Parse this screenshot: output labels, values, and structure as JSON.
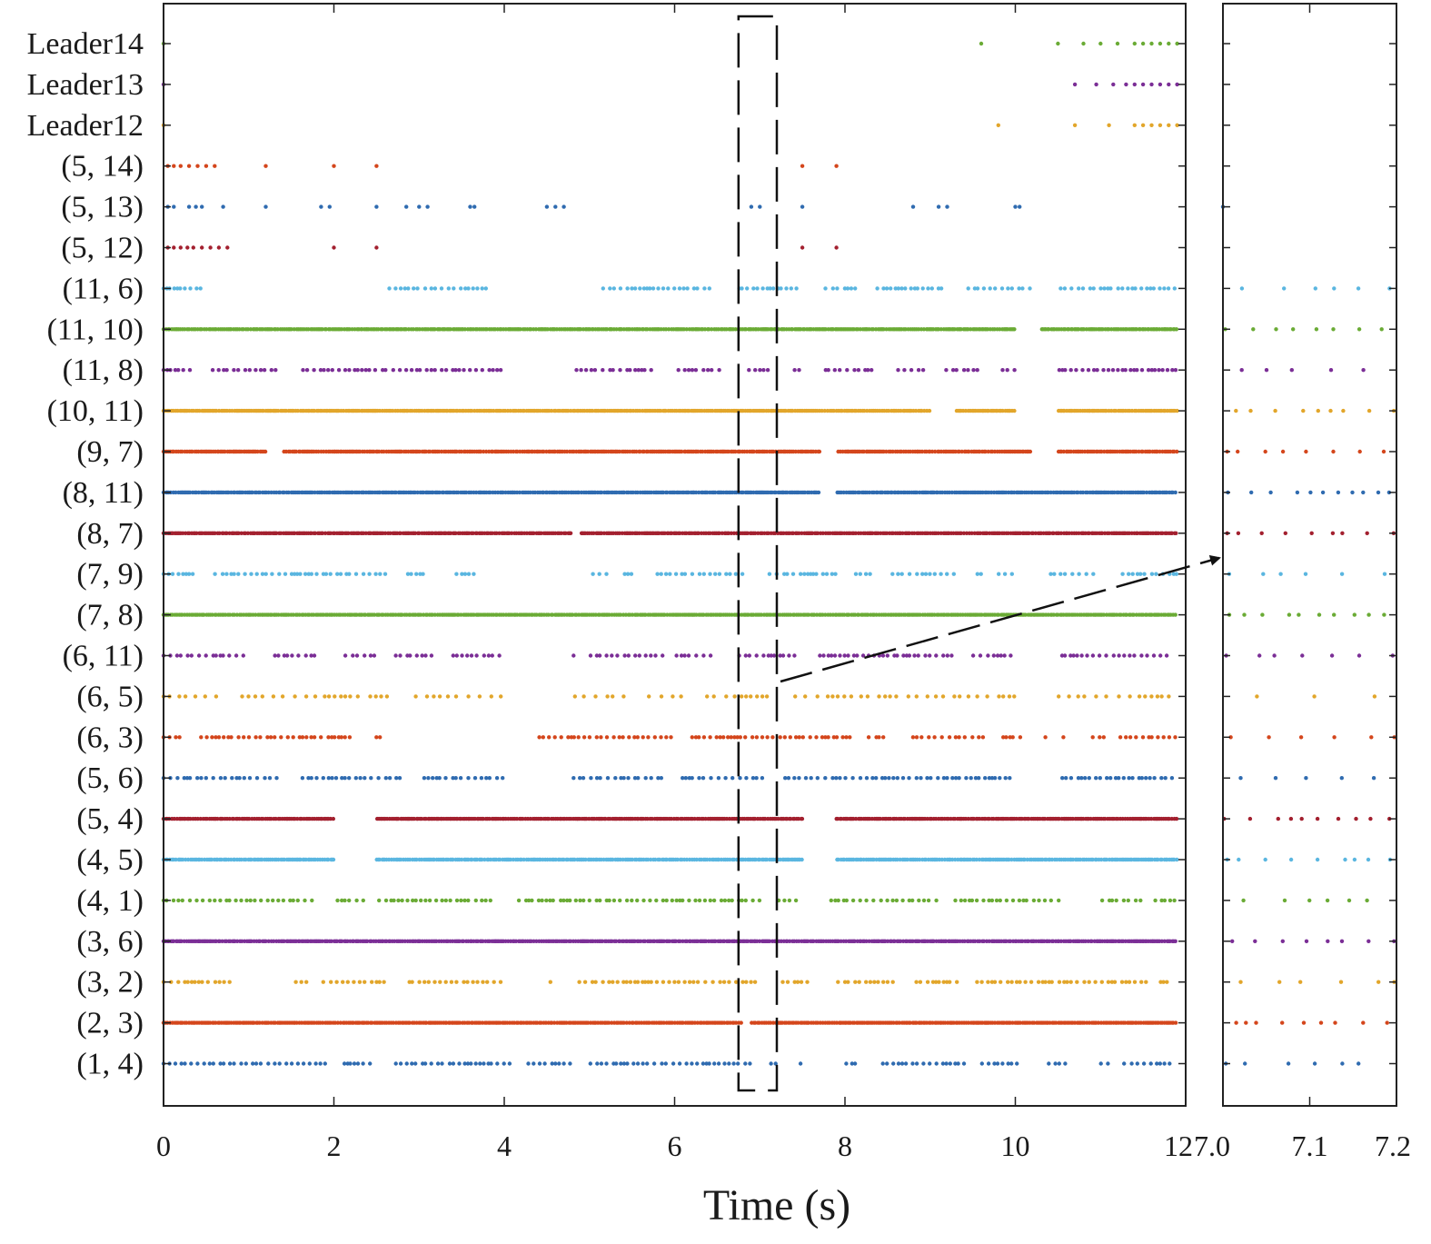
{
  "chart_data": [
    {
      "type": "scatter",
      "title": "",
      "xlabel": "Time (s)",
      "ylabel": "",
      "xlim": [
        0,
        12
      ],
      "xticks": [
        0,
        2,
        4,
        6,
        8,
        10,
        12
      ],
      "xtick_labels": [
        "0",
        "2",
        "4",
        "6",
        "8",
        "10",
        "12"
      ],
      "grid": false,
      "legend": "none",
      "series": [
        {
          "label": "(1, 4)",
          "color": "#2f6bb0",
          "density": "medium",
          "gaps": [
            [
              4.8,
              5.0
            ],
            [
              7.5,
              8.0
            ],
            [
              10.6,
              11.0
            ]
          ],
          "start": 0,
          "end": 11.9
        },
        {
          "label": "(2, 3)",
          "color": "#d4461c",
          "density": "dense",
          "gaps": [
            [
              6.8,
              6.9
            ]
          ],
          "start": 0,
          "end": 11.9
        },
        {
          "label": "(3, 2)",
          "color": "#e2a62b",
          "density": "medium",
          "gaps": [
            [
              0.8,
              1.5
            ],
            [
              4.0,
              4.4
            ],
            [
              7.6,
              7.9
            ]
          ],
          "start": 0,
          "end": 11.9
        },
        {
          "label": "(3, 6)",
          "color": "#7b2e96",
          "density": "dense",
          "gaps": [],
          "start": 0,
          "end": 11.9
        },
        {
          "label": "(4, 1)",
          "color": "#6aab35",
          "density": "medium",
          "gaps": [
            [
              7.5,
              7.8
            ],
            [
              10.6,
              11.0
            ]
          ],
          "start": 0,
          "end": 11.9
        },
        {
          "label": "(4, 5)",
          "color": "#5ab6e0",
          "density": "dense",
          "gaps": [
            [
              2.0,
              2.5
            ],
            [
              7.5,
              7.9
            ]
          ],
          "start": 0,
          "end": 11.9
        },
        {
          "label": "(5, 4)",
          "color": "#a3202f",
          "density": "dense",
          "gaps": [
            [
              2.0,
              2.5
            ],
            [
              7.5,
              7.9
            ]
          ],
          "start": 0,
          "end": 11.9
        },
        {
          "label": "(5, 6)",
          "color": "#2f6bb0",
          "density": "medium",
          "gaps": [
            [
              4.0,
              4.8
            ],
            [
              10.0,
              10.5
            ]
          ],
          "start": 0,
          "end": 11.9
        },
        {
          "label": "(6, 3)",
          "color": "#d4461c",
          "density": "medium",
          "gaps": [
            [
              2.6,
              4.4
            ],
            [
              10.6,
              10.9
            ]
          ],
          "start": 0,
          "end": 11.9
        },
        {
          "label": "(6, 5)",
          "color": "#e2a62b",
          "density": "sparse",
          "gaps": [
            [
              4.0,
              4.8
            ],
            [
              10.0,
              10.5
            ]
          ],
          "start": 0,
          "end": 11.9
        },
        {
          "label": "(6, 11)",
          "color": "#7b2e96",
          "density": "medium",
          "gaps": [
            [
              4.0,
              4.8
            ],
            [
              10.0,
              10.5
            ]
          ],
          "start": 0,
          "end": 11.9
        },
        {
          "label": "(7, 8)",
          "color": "#6aab35",
          "density": "dense",
          "gaps": [],
          "start": 0,
          "end": 11.9
        },
        {
          "label": "(7, 9)",
          "color": "#5ab6e0",
          "density": "medium",
          "gaps": [
            [
              4.0,
              5.0
            ],
            [
              10.0,
              10.4
            ]
          ],
          "start": 0,
          "end": 11.9
        },
        {
          "label": "(8, 7)",
          "color": "#a3202f",
          "density": "dense",
          "gaps": [
            [
              4.8,
              4.9
            ]
          ],
          "start": 0,
          "end": 11.9
        },
        {
          "label": "(8, 11)",
          "color": "#2f6bb0",
          "density": "dense",
          "gaps": [
            [
              7.7,
              7.9
            ]
          ],
          "start": 0,
          "end": 11.9
        },
        {
          "label": "(9, 7)",
          "color": "#d4461c",
          "density": "dense",
          "gaps": [
            [
              1.2,
              1.4
            ],
            [
              7.7,
              7.9
            ],
            [
              10.2,
              10.5
            ]
          ],
          "start": 0,
          "end": 11.9
        },
        {
          "label": "(10, 11)",
          "color": "#e2a62b",
          "density": "dense",
          "gaps": [
            [
              9.0,
              9.3
            ],
            [
              10.0,
              10.5
            ]
          ],
          "start": 0,
          "end": 11.9
        },
        {
          "label": "(11, 8)",
          "color": "#7b2e96",
          "density": "medium",
          "gaps": [
            [
              4.0,
              4.8
            ],
            [
              10.0,
              10.5
            ]
          ],
          "start": 0,
          "end": 11.9
        },
        {
          "label": "(11, 10)",
          "color": "#6aab35",
          "density": "dense",
          "gaps": [
            [
              10.0,
              10.3
            ]
          ],
          "start": 0,
          "end": 11.9
        },
        {
          "label": "(11, 6)",
          "color": "#5ab6e0",
          "density": "medium",
          "gaps": [
            [
              0.6,
              2.6
            ],
            [
              3.8,
              5.0
            ],
            [
              10.2,
              10.5
            ]
          ],
          "start": 0,
          "end": 11.9
        },
        {
          "label": "(5, 12)",
          "color": "#a3202f",
          "x": [
            0.05,
            0.12,
            0.2,
            0.28,
            0.35,
            0.45,
            0.55,
            0.65,
            0.75,
            2.0,
            2.5,
            7.5,
            7.9
          ]
        },
        {
          "label": "(5, 13)",
          "color": "#2f6bb0",
          "x": [
            0.05,
            0.12,
            0.3,
            0.38,
            0.45,
            0.7,
            1.2,
            1.85,
            1.95,
            2.5,
            2.85,
            3.0,
            3.1,
            3.6,
            3.65,
            4.5,
            4.6,
            4.7,
            6.9,
            7.0,
            7.5,
            8.8,
            9.1,
            9.2,
            10.0,
            10.05
          ]
        },
        {
          "label": "(5, 14)",
          "color": "#d4461c",
          "x": [
            0.05,
            0.12,
            0.2,
            0.3,
            0.4,
            0.5,
            0.6,
            1.2,
            2.0,
            2.5,
            7.5,
            7.9
          ]
        },
        {
          "label": "Leader12",
          "color": "#e2a62b",
          "x": [
            0.0,
            9.8,
            10.7,
            11.1,
            11.4,
            11.5,
            11.6,
            11.7,
            11.8,
            11.9
          ]
        },
        {
          "label": "Leader13",
          "color": "#7b2e96",
          "x": [
            0.0,
            10.7,
            10.95,
            11.15,
            11.3,
            11.4,
            11.5,
            11.6,
            11.7,
            11.8,
            11.9
          ]
        },
        {
          "label": "Leader14",
          "color": "#6aab35",
          "x": [
            0.0,
            9.6,
            10.5,
            10.8,
            11.0,
            11.2,
            11.4,
            11.5,
            11.6,
            11.7,
            11.8,
            11.9
          ]
        }
      ],
      "highlight_window": [
        6.75,
        7.2
      ]
    },
    {
      "type": "scatter",
      "title": "",
      "xlabel": "",
      "xlim": [
        7.0,
        7.2
      ],
      "xticks": [
        7.0,
        7.1,
        7.2
      ],
      "xtick_labels": [
        "7.0",
        "7.1",
        "7.2"
      ],
      "grid": false,
      "legend": "none"
    }
  ]
}
